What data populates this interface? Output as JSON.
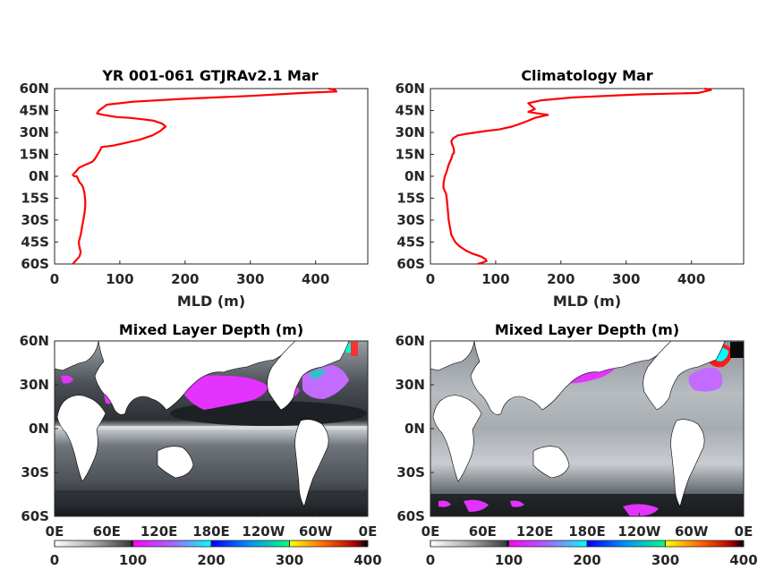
{
  "chart_data": [
    {
      "type": "line",
      "title": "YR 001-061 GTJRAv2.1 Mar",
      "xlabel": "MLD (m)",
      "ylabel": "",
      "xlim": [
        0,
        480
      ],
      "ylim": [
        -60,
        60
      ],
      "xticks": [
        "0",
        "100",
        "200",
        "300",
        "400"
      ],
      "xtick_values": [
        0,
        100,
        200,
        300,
        400
      ],
      "yticks": [
        "60N",
        "45N",
        "30N",
        "15N",
        "0N",
        "15S",
        "30S",
        "45S",
        "60S"
      ],
      "ytick_values": [
        60,
        45,
        30,
        15,
        0,
        -15,
        -30,
        -45,
        -60
      ],
      "grid": false,
      "line_color": "#ff0000",
      "series": [
        {
          "x": [
            28,
            32,
            38,
            40,
            38,
            37,
            40,
            42,
            44,
            46,
            47,
            47,
            46,
            45,
            44,
            42,
            38,
            36,
            34,
            30,
            28,
            30,
            34,
            38,
            48,
            58,
            62,
            66,
            70,
            72,
            90,
            110,
            130,
            150,
            162,
            170,
            165,
            152,
            135,
            115,
            95,
            75,
            65,
            68,
            74,
            80,
            120,
            200,
            300,
            380,
            432,
            430,
            420
          ],
          "y": [
            -60,
            -58,
            -55,
            -52,
            -48,
            -45,
            -40,
            -35,
            -30,
            -25,
            -20,
            -17,
            -12,
            -10,
            -8,
            -6,
            -4,
            -2,
            0,
            0,
            1,
            2,
            4,
            6,
            8,
            10,
            12,
            15,
            18,
            20,
            21,
            23,
            25,
            28,
            31,
            34,
            36,
            38,
            39,
            40,
            40.5,
            42,
            43,
            45,
            47,
            49,
            51,
            53,
            55,
            57,
            58,
            59,
            60
          ]
        }
      ]
    },
    {
      "type": "line",
      "title": "Climatology Mar",
      "xlabel": "MLD (m)",
      "ylabel": "",
      "xlim": [
        0,
        480
      ],
      "ylim": [
        -60,
        60
      ],
      "xticks": [
        "0",
        "100",
        "200",
        "300",
        "400"
      ],
      "xtick_values": [
        0,
        100,
        200,
        300,
        400
      ],
      "yticks": [
        "60N",
        "45N",
        "30N",
        "15N",
        "0N",
        "15S",
        "30S",
        "45S",
        "60S"
      ],
      "ytick_values": [
        60,
        45,
        30,
        15,
        0,
        -15,
        -30,
        -45,
        -60
      ],
      "grid": false,
      "line_color": "#ff0000",
      "series": [
        {
          "x": [
            72,
            80,
            86,
            85,
            78,
            65,
            55,
            45,
            38,
            32,
            30,
            28,
            27,
            26,
            25,
            24,
            22,
            20,
            20,
            22,
            24,
            26,
            28,
            30,
            32,
            34,
            36,
            36,
            35,
            33,
            32,
            35,
            42,
            55,
            70,
            85,
            105,
            115,
            125,
            138,
            150,
            160,
            180,
            165,
            150,
            160,
            155,
            150,
            170,
            220,
            320,
            410,
            430,
            420
          ],
          "y": [
            -60,
            -59,
            -58,
            -57,
            -55,
            -53,
            -51,
            -48,
            -45,
            -40,
            -35,
            -30,
            -25,
            -20,
            -15,
            -12,
            -10,
            -8,
            -5,
            0,
            2,
            5,
            8,
            10,
            12,
            15,
            16,
            18,
            20,
            22,
            24,
            26,
            28,
            29,
            30,
            31,
            32,
            33,
            34,
            36,
            38,
            40,
            42,
            43,
            44,
            46,
            48,
            50,
            52,
            54,
            56,
            57,
            59,
            60
          ]
        }
      ]
    },
    {
      "type": "heatmap",
      "title": "Mixed Layer Depth (m)",
      "ylim": [
        -60,
        60
      ],
      "xticks": [
        "0E",
        "60E",
        "120E",
        "180E",
        "120W",
        "60W",
        "0E"
      ],
      "yticks": [
        "60N",
        "30N",
        "0N",
        "30S",
        "60S"
      ],
      "ytick_values": [
        60,
        30,
        0,
        -30,
        -60
      ],
      "colorbar": {
        "ticks": [
          "0",
          "100",
          "200",
          "300",
          "400"
        ],
        "range": [
          0,
          400
        ],
        "stops": [
          "#ffffff",
          "#7a8088",
          "#000000",
          "#ff00ff",
          "#00ffff",
          "#0000ff",
          "#00ff80",
          "#ffff00",
          "#ff0000",
          "#000000"
        ]
      }
    },
    {
      "type": "heatmap",
      "title": "Mixed Layer Depth (m)",
      "ylim": [
        -60,
        60
      ],
      "xticks": [
        "0E",
        "60E",
        "120E",
        "180E",
        "120W",
        "60W",
        "0E"
      ],
      "yticks": [
        "60N",
        "30N",
        "0N",
        "30S",
        "60S"
      ],
      "ytick_values": [
        60,
        30,
        0,
        -30,
        -60
      ],
      "colorbar": {
        "ticks": [
          "0",
          "100",
          "200",
          "300",
          "400"
        ],
        "range": [
          0,
          400
        ],
        "stops": [
          "#ffffff",
          "#7a8088",
          "#000000",
          "#ff00ff",
          "#00ffff",
          "#0000ff",
          "#00ff80",
          "#ffff00",
          "#ff0000",
          "#000000"
        ]
      }
    }
  ]
}
